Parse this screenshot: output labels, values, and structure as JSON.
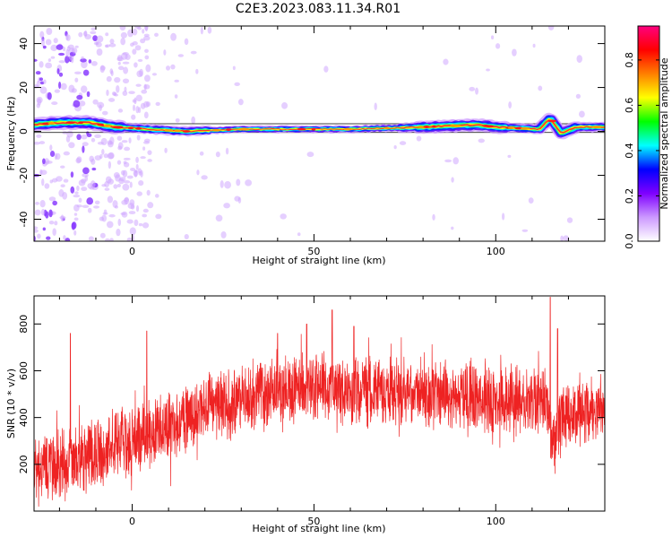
{
  "title": "C2E3.2023.083.11.34.R01",
  "chart_data": [
    {
      "type": "heatmap",
      "xlabel": "Height of straight line (km)",
      "ylabel": "Frequency (Hz)",
      "xlim": [
        -27,
        130
      ],
      "ylim": [
        -50,
        48
      ],
      "xticks": [
        0,
        50,
        100
      ],
      "yticks": [
        -40,
        -20,
        0,
        20,
        40
      ],
      "colorbar": {
        "label": "Normalized spectral amplitude",
        "range": [
          0,
          0.95
        ],
        "ticks": [
          "0.0",
          "0.2",
          "0.4",
          "0.6",
          "0.8"
        ],
        "colors": [
          "#ffffff",
          "#cc99ff",
          "#7f00ff",
          "#0000ff",
          "#00ffff",
          "#00ff00",
          "#ffff00",
          "#ff7f00",
          "#ff0000",
          "#ff0080"
        ]
      },
      "ridge": {
        "description": "dominant frequency trace",
        "points": [
          [
            -27,
            3
          ],
          [
            -20,
            4
          ],
          [
            -12,
            4
          ],
          [
            -5,
            2
          ],
          [
            5,
            1
          ],
          [
            15,
            0
          ],
          [
            30,
            1
          ],
          [
            60,
            1
          ],
          [
            80,
            2
          ],
          [
            95,
            3
          ],
          [
            100,
            2
          ],
          [
            112,
            1
          ],
          [
            115,
            6
          ],
          [
            118,
            -1
          ],
          [
            122,
            2
          ],
          [
            130,
            2
          ]
        ]
      }
    },
    {
      "type": "line",
      "xlabel": "Height of straight line (km)",
      "ylabel": "SNR (10 * v/v)",
      "xlim": [
        -27,
        130
      ],
      "ylim": [
        0,
        920
      ],
      "xticks": [
        0,
        50,
        100
      ],
      "yticks": [
        200,
        400,
        600,
        800
      ],
      "color": "#ee2222",
      "trend": {
        "x": [
          -27,
          -20,
          -10,
          0,
          10,
          20,
          30,
          40,
          50,
          60,
          70,
          80,
          90,
          100,
          110,
          114,
          116,
          118,
          122,
          130
        ],
        "y": [
          200,
          200,
          250,
          300,
          360,
          430,
          480,
          520,
          530,
          520,
          510,
          500,
          490,
          480,
          470,
          480,
          300,
          380,
          430,
          440
        ]
      },
      "peaks": [
        [
          -17,
          760
        ],
        [
          4,
          770
        ],
        [
          40,
          760
        ],
        [
          48,
          800
        ],
        [
          55,
          860
        ],
        [
          61,
          790
        ],
        [
          115,
          920
        ],
        [
          117,
          780
        ]
      ],
      "noise": 130
    }
  ]
}
